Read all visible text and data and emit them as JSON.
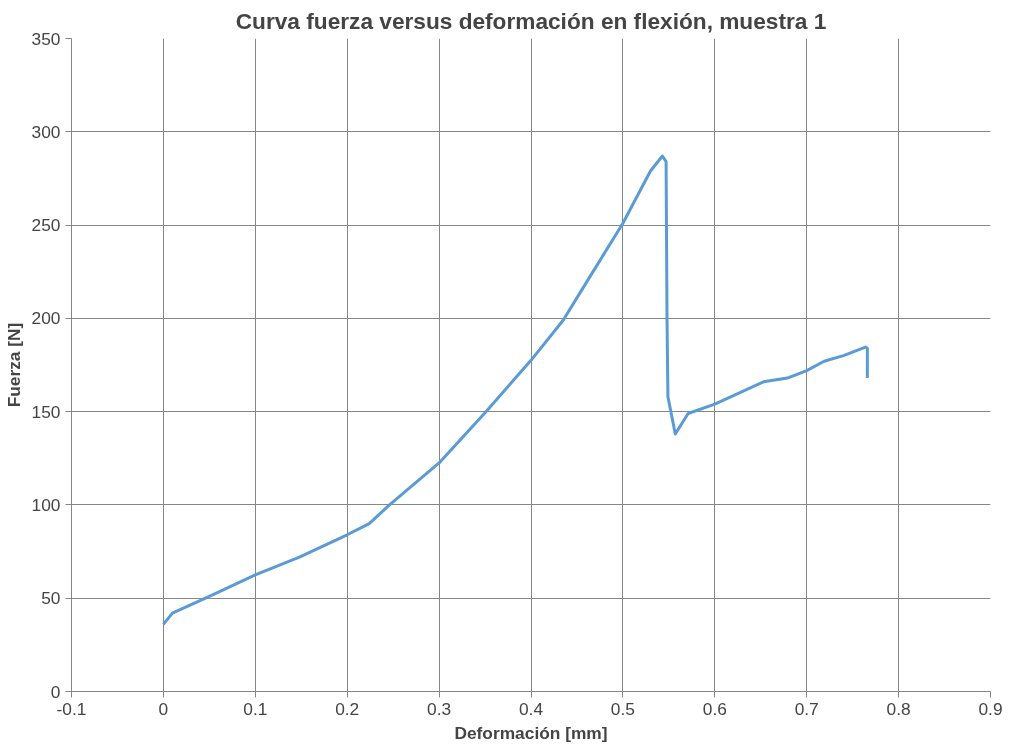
{
  "chart_data": {
    "type": "line",
    "title": "Curva fuerza versus deformación en flexión, muestra 1",
    "xlabel": "Deformación [mm]",
    "ylabel": "Fuerza [N]",
    "x": [
      0,
      0.0098,
      0.05,
      0.1,
      0.148,
      0.2,
      0.224,
      0.246,
      0.3,
      0.351,
      0.4,
      0.435,
      0.46,
      0.5,
      0.53,
      0.543,
      0.547,
      0.548,
      0.549,
      0.557,
      0.571,
      0.6,
      0.653,
      0.679,
      0.7,
      0.719,
      0.74,
      0.764,
      0.766,
      0.766
    ],
    "series": [
      {
        "color": "#5b9bd5",
        "values": [
          36,
          42,
          51,
          62.5,
          72,
          84,
          90,
          100,
          122.5,
          150,
          177.5,
          199,
          219,
          251,
          279,
          287,
          284,
          200,
          158,
          138,
          149,
          154,
          166,
          168,
          172,
          177,
          180,
          184.6,
          184,
          168
        ]
      }
    ],
    "xlim": [
      -0.1,
      0.9
    ],
    "xticks": [
      -0.1,
      0,
      0.1,
      0.2,
      0.3,
      0.4,
      0.5,
      0.6,
      0.7,
      0.8,
      0.9
    ],
    "ylim": [
      0,
      350
    ],
    "yticks": [
      0,
      50,
      100,
      150,
      200,
      250,
      300,
      350
    ],
    "grid": true,
    "marker": "none",
    "line_style": "solid"
  }
}
